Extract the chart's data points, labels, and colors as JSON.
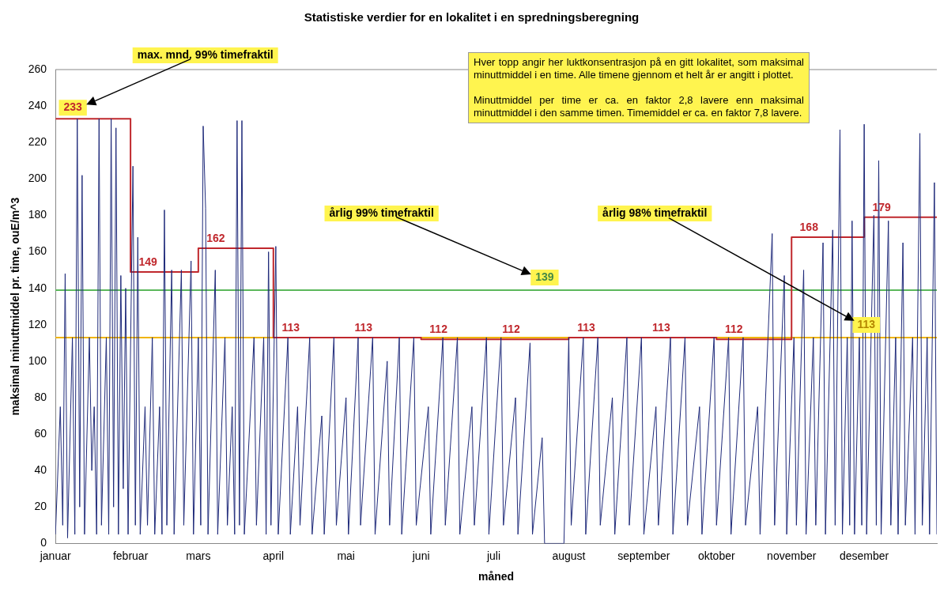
{
  "chart_data": {
    "type": "line",
    "title": "Statistiske verdier for en lokalitet i en spredningsberegning",
    "xlabel": "måned",
    "ylabel": "maksimal minuttmiddel pr. time, ouE/m^3",
    "xlim": [
      "--01-01",
      "--12-31"
    ],
    "xticks": [
      {
        "value": "--01-01",
        "label": "januar"
      },
      {
        "value": "--02-01",
        "label": "februar"
      },
      {
        "value": "--03-01",
        "label": "mars"
      },
      {
        "value": "--04-01",
        "label": "april"
      },
      {
        "value": "--05-01",
        "label": "mai"
      },
      {
        "value": "--06-01",
        "label": "juni"
      },
      {
        "value": "--07-01",
        "label": "juli"
      },
      {
        "value": "--08-01",
        "label": "august"
      },
      {
        "value": "--09-01",
        "label": "september"
      },
      {
        "value": "--10-01",
        "label": "oktober"
      },
      {
        "value": "--11-01",
        "label": "november"
      },
      {
        "value": "--12-01",
        "label": "desember"
      }
    ],
    "ylim": [
      0,
      260
    ],
    "yticks": [
      0,
      20,
      40,
      60,
      80,
      100,
      120,
      140,
      160,
      180,
      200,
      220,
      240,
      260
    ],
    "marker": "none",
    "series": [
      {
        "color": "#1f2a7a",
        "x": [
          "--01-01",
          "--01-03",
          "--01-04",
          "--01-05",
          "--01-06",
          "--01-08",
          "--01-09",
          "--01-10",
          "--01-11",
          "--01-12",
          "--01-13",
          "--01-15",
          "--01-16",
          "--01-17",
          "--01-18",
          "--01-19",
          "--01-20",
          "--01-22",
          "--01-23",
          "--01-24",
          "--01-25",
          "--01-26",
          "--01-27",
          "--01-28",
          "--01-29",
          "--01-30",
          "--01-31",
          "--02-02",
          "--02-03",
          "--02-04",
          "--02-05",
          "--02-07",
          "--02-08",
          "--02-10",
          "--02-11",
          "--02-13",
          "--02-14",
          "--02-15",
          "--02-16",
          "--02-18",
          "--02-19",
          "--02-22",
          "--02-23",
          "--02-26",
          "--02-27",
          "--03-01",
          "--03-02",
          "--03-03",
          "--03-04",
          "--03-05",
          "--03-08",
          "--03-09",
          "--03-12",
          "--03-13",
          "--03-15",
          "--03-16",
          "--03-17",
          "--03-18",
          "--03-19",
          "--03-20",
          "--03-24",
          "--03-25",
          "--03-28",
          "--03-29",
          "--03-30",
          "--03-31",
          "--04-02",
          "--04-03",
          "--04-07",
          "--04-08",
          "--04-11",
          "--04-12",
          "--04-16",
          "--04-17",
          "--04-21",
          "--04-22",
          "--04-26",
          "--04-27",
          "--05-01",
          "--05-02",
          "--05-06",
          "--05-07",
          "--05-12",
          "--05-13",
          "--05-18",
          "--05-19",
          "--05-23",
          "--05-24",
          "--05-29",
          "--05-30",
          "--06-04",
          "--06-05",
          "--06-10",
          "--06-11",
          "--06-16",
          "--06-17",
          "--06-22",
          "--06-23",
          "--06-28",
          "--06-29",
          "--07-04",
          "--07-05",
          "--07-10",
          "--07-11",
          "--07-16",
          "--07-17",
          "--07-21",
          "--07-22",
          "--07-30",
          "--08-01",
          "--08-02",
          "--08-07",
          "--08-08",
          "--08-13",
          "--08-14",
          "--08-19",
          "--08-20",
          "--08-25",
          "--08-26",
          "--08-31",
          "--09-01",
          "--09-06",
          "--09-07",
          "--09-12",
          "--09-13",
          "--09-18",
          "--09-19",
          "--09-24",
          "--09-25",
          "--09-30",
          "--10-01",
          "--10-06",
          "--10-07",
          "--10-12",
          "--10-13",
          "--10-18",
          "--10-19",
          "--10-24",
          "--10-25",
          "--10-29",
          "--10-30",
          "--11-02",
          "--11-03",
          "--11-06",
          "--11-07",
          "--11-10",
          "--11-11",
          "--11-14",
          "--11-15",
          "--11-18",
          "--11-19",
          "--11-21",
          "--11-22",
          "--11-24",
          "--11-25",
          "--11-26",
          "--11-27",
          "--11-29",
          "--11-30",
          "--12-01",
          "--12-02",
          "--12-05",
          "--12-06",
          "--12-07",
          "--12-08",
          "--12-11",
          "--12-12",
          "--12-14",
          "--12-15",
          "--12-17",
          "--12-18",
          "--12-21",
          "--12-22",
          "--12-24",
          "--12-25",
          "--12-27",
          "--12-28",
          "--12-30",
          "--12-31"
        ],
        "values": [
          5,
          75,
          10,
          148,
          3,
          113,
          5,
          233,
          20,
          202,
          5,
          113,
          40,
          75,
          5,
          233,
          10,
          113,
          5,
          233,
          20,
          228,
          5,
          147,
          30,
          140,
          5,
          207,
          10,
          168,
          5,
          75,
          10,
          113,
          5,
          75,
          5,
          183,
          10,
          150,
          5,
          150,
          10,
          155,
          5,
          113,
          10,
          229,
          184,
          5,
          150,
          5,
          113,
          10,
          75,
          5,
          232,
          10,
          232,
          5,
          113,
          10,
          113,
          5,
          160,
          10,
          163,
          5,
          113,
          5,
          75,
          10,
          113,
          5,
          70,
          5,
          113,
          10,
          80,
          5,
          113,
          10,
          113,
          5,
          100,
          10,
          113,
          5,
          113,
          10,
          75,
          5,
          113,
          10,
          113,
          5,
          75,
          10,
          113,
          5,
          113,
          10,
          80,
          5,
          110,
          5,
          58,
          0,
          0,
          113,
          10,
          113,
          5,
          113,
          10,
          80,
          5,
          113,
          10,
          113,
          5,
          75,
          10,
          113,
          5,
          113,
          10,
          75,
          5,
          113,
          10,
          113,
          5,
          113,
          10,
          75,
          5,
          170,
          10,
          147,
          5,
          113,
          10,
          150,
          5,
          113,
          10,
          165,
          5,
          172,
          10,
          227,
          5,
          113,
          10,
          177,
          5,
          113,
          10,
          230,
          5,
          180,
          10,
          210,
          5,
          177,
          10,
          113,
          5,
          165,
          10,
          113,
          5,
          225,
          10,
          113,
          5,
          198,
          5
        ]
      },
      {
        "type": "step",
        "color": "#c0282d",
        "x": [
          "--01-01",
          "--02-01",
          "--03-01",
          "--04-01",
          "--05-01",
          "--06-01",
          "--07-01",
          "--08-01",
          "--09-01",
          "--10-01",
          "--11-01",
          "--12-01",
          "--12-31"
        ],
        "values": [
          233,
          149,
          162,
          113,
          113,
          112,
          112,
          113,
          113,
          112,
          168,
          179,
          179
        ],
        "value_labels": [
          "233",
          "149",
          "162",
          "113",
          "113",
          "112",
          "112",
          "113",
          "113",
          "112",
          "168",
          "179",
          null
        ]
      }
    ],
    "ref_lines": [
      {
        "axis": "y",
        "value": 139,
        "label": "139",
        "color": "#5cb85c"
      },
      {
        "axis": "y",
        "value": 113,
        "label": "113",
        "color": "#f0b400"
      }
    ],
    "annotations": [
      "max. mnd. 99% timefraktil",
      "årlig 99% timefraktil",
      "årlig 98% timefraktil",
      "Hver topp angir her luktkonsentrasjon på en gitt lokalitet, som maksimal minuttmiddel i en time. Alle timene gjennom et helt år er angitt i plottet.",
      "Minuttmiddel per time er ca. en faktor 2,8 lavere enn maksimal minuttmiddel i den samme timen. Timemiddel er ca. en faktor 7,8 lavere."
    ]
  }
}
